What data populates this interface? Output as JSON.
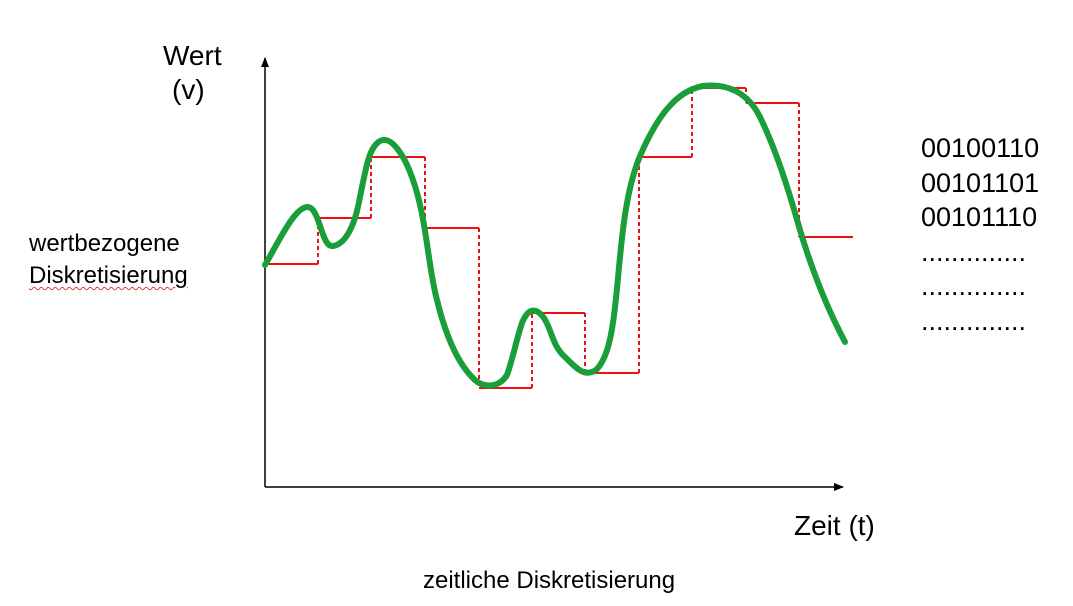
{
  "y_axis": {
    "title_line1": "Wert",
    "title_line2": "(v)"
  },
  "x_axis": {
    "title": "Zeit (t)"
  },
  "left_label": {
    "line1": "wertbezogene",
    "line2": "Diskretisierung"
  },
  "bottom_label": "zeitliche Diskretisierung",
  "binary_codes": [
    "00100110",
    "00101101",
    "00101110",
    "..............",
    "..............",
    ".............."
  ],
  "colors": {
    "signal": "#1a9e3a",
    "steps": "#ee1111",
    "axis": "#000000"
  }
}
